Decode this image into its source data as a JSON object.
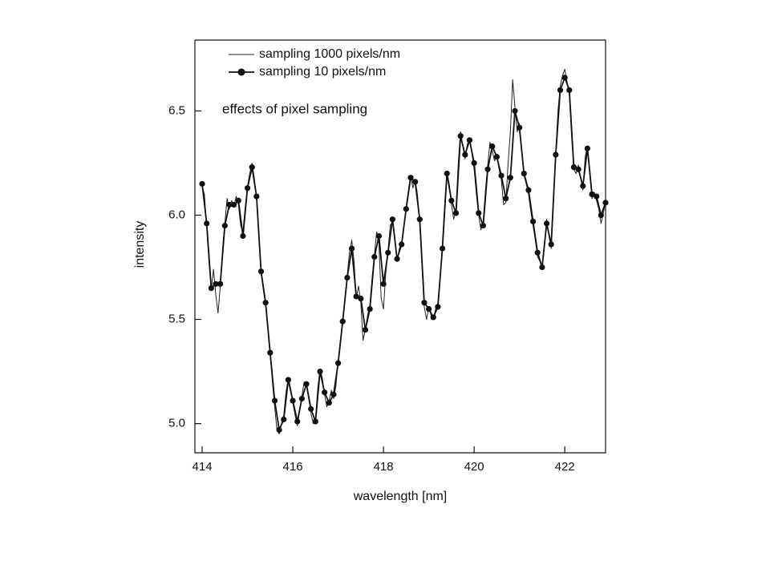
{
  "chart_data": {
    "type": "line",
    "annotation": "effects of pixel sampling",
    "x_label": "wavelength [nm]",
    "y_label": "intensity",
    "xlim": [
      413.84,
      422.9
    ],
    "ylim": [
      4.86,
      6.84
    ],
    "xticks": [
      414,
      416,
      418,
      420,
      422
    ],
    "yticks": [
      {
        "value": 5,
        "label": "5.0"
      },
      5.5,
      {
        "value": 6,
        "label": "6.0"
      },
      6.5
    ],
    "series": [
      {
        "name": "sampling 1000 pixels/nm",
        "color": "#222222",
        "markers": false,
        "x": [
          414.0,
          414.05,
          414.1,
          414.15,
          414.2,
          414.25,
          414.3,
          414.35,
          414.4,
          414.45,
          414.5,
          414.55,
          414.6,
          414.65,
          414.7,
          414.75,
          414.8,
          414.85,
          414.9,
          414.95,
          415.0,
          415.05,
          415.1,
          415.15,
          415.2,
          415.25,
          415.3,
          415.35,
          415.4,
          415.45,
          415.5,
          415.55,
          415.6,
          415.65,
          415.7,
          415.75,
          415.8,
          415.85,
          415.9,
          415.95,
          416.0,
          416.05,
          416.1,
          416.15,
          416.2,
          416.25,
          416.3,
          416.35,
          416.4,
          416.45,
          416.5,
          416.55,
          416.6,
          416.65,
          416.7,
          416.75,
          416.8,
          416.85,
          416.9,
          416.95,
          417.0,
          417.05,
          417.1,
          417.15,
          417.2,
          417.25,
          417.3,
          417.35,
          417.4,
          417.45,
          417.5,
          417.55,
          417.6,
          417.65,
          417.7,
          417.75,
          417.8,
          417.85,
          417.9,
          417.95,
          418.0,
          418.05,
          418.1,
          418.15,
          418.2,
          418.25,
          418.3,
          418.35,
          418.4,
          418.45,
          418.5,
          418.55,
          418.6,
          418.65,
          418.7,
          418.75,
          418.8,
          418.85,
          418.9,
          418.95,
          419.0,
          419.05,
          419.1,
          419.15,
          419.2,
          419.25,
          419.3,
          419.35,
          419.4,
          419.45,
          419.5,
          419.55,
          419.6,
          419.65,
          419.7,
          419.75,
          419.8,
          419.85,
          419.9,
          419.95,
          420.0,
          420.05,
          420.1,
          420.15,
          420.2,
          420.25,
          420.3,
          420.35,
          420.4,
          420.45,
          420.5,
          420.55,
          420.6,
          420.65,
          420.7,
          420.75,
          420.8,
          420.85,
          420.9,
          420.95,
          421.0,
          421.05,
          421.1,
          421.15,
          421.2,
          421.25,
          421.3,
          421.35,
          421.4,
          421.45,
          421.5,
          421.55,
          421.6,
          421.65,
          421.7,
          421.75,
          421.8,
          421.85,
          421.9,
          421.95,
          422.0,
          422.05,
          422.1,
          422.15,
          422.2,
          422.25,
          422.3,
          422.35,
          422.4,
          422.45,
          422.5,
          422.55,
          422.6,
          422.65,
          422.7,
          422.75,
          422.8,
          422.85,
          422.9
        ],
        "values": [
          6.14,
          6.1,
          5.94,
          5.78,
          5.64,
          5.74,
          5.62,
          5.53,
          5.66,
          5.84,
          5.96,
          6.08,
          6.03,
          6.07,
          6.04,
          6.09,
          6.05,
          5.95,
          5.92,
          6.04,
          6.14,
          6.2,
          6.25,
          6.18,
          6.08,
          5.9,
          5.72,
          5.64,
          5.57,
          5.45,
          5.33,
          5.2,
          5.08,
          4.97,
          4.95,
          5.0,
          5.04,
          5.15,
          5.22,
          5.17,
          5.1,
          5.04,
          4.99,
          5.06,
          5.13,
          5.2,
          5.18,
          5.12,
          5.05,
          5.0,
          5.02,
          5.17,
          5.26,
          5.22,
          5.14,
          5.08,
          5.11,
          5.16,
          5.12,
          5.18,
          5.3,
          5.4,
          5.48,
          5.6,
          5.71,
          5.82,
          5.88,
          5.78,
          5.6,
          5.66,
          5.58,
          5.4,
          5.45,
          5.52,
          5.57,
          5.7,
          5.81,
          5.92,
          5.86,
          5.6,
          5.55,
          5.72,
          5.83,
          5.95,
          5.97,
          5.88,
          5.78,
          5.84,
          5.87,
          5.94,
          6.04,
          6.12,
          6.19,
          6.13,
          6.17,
          6.1,
          5.96,
          5.75,
          5.56,
          5.5,
          5.56,
          5.52,
          5.5,
          5.55,
          5.58,
          5.7,
          5.86,
          6.05,
          6.21,
          6.15,
          6.05,
          5.98,
          6.03,
          6.25,
          6.4,
          6.33,
          6.27,
          6.34,
          6.36,
          6.3,
          6.22,
          6.1,
          6.0,
          5.93,
          5.97,
          6.12,
          6.24,
          6.35,
          6.31,
          6.26,
          6.29,
          6.22,
          6.17,
          6.05,
          6.06,
          6.25,
          6.4,
          6.65,
          6.52,
          6.4,
          6.44,
          6.3,
          6.19,
          6.15,
          6.1,
          6.02,
          5.95,
          5.88,
          5.8,
          5.78,
          5.74,
          5.85,
          5.98,
          5.9,
          5.84,
          6.05,
          6.3,
          6.5,
          6.62,
          6.67,
          6.7,
          6.64,
          6.58,
          6.38,
          6.22,
          6.2,
          6.24,
          6.18,
          6.12,
          6.28,
          6.33,
          6.2,
          6.08,
          6.11,
          6.07,
          6.03,
          5.96,
          6.01,
          6.06
        ]
      },
      {
        "name": "sampling 10 pixels/nm",
        "color": "#111111",
        "markers": true,
        "x": [
          414.0,
          414.1,
          414.2,
          414.3,
          414.4,
          414.5,
          414.6,
          414.7,
          414.8,
          414.9,
          415.0,
          415.1,
          415.2,
          415.3,
          415.4,
          415.5,
          415.6,
          415.7,
          415.8,
          415.9,
          416.0,
          416.1,
          416.2,
          416.3,
          416.4,
          416.5,
          416.6,
          416.7,
          416.8,
          416.9,
          417.0,
          417.1,
          417.2,
          417.3,
          417.4,
          417.5,
          417.6,
          417.7,
          417.8,
          417.9,
          418.0,
          418.1,
          418.2,
          418.3,
          418.4,
          418.5,
          418.6,
          418.7,
          418.8,
          418.9,
          419.0,
          419.1,
          419.2,
          419.3,
          419.4,
          419.5,
          419.6,
          419.7,
          419.8,
          419.9,
          420.0,
          420.1,
          420.2,
          420.3,
          420.4,
          420.5,
          420.6,
          420.7,
          420.8,
          420.9,
          421.0,
          421.1,
          421.2,
          421.3,
          421.4,
          421.5,
          421.6,
          421.7,
          421.8,
          421.9,
          422.0,
          422.1,
          422.2,
          422.3,
          422.4,
          422.5,
          422.6,
          422.7,
          422.8,
          422.9
        ],
        "values": [
          6.15,
          5.96,
          5.65,
          5.67,
          5.67,
          5.95,
          6.05,
          6.05,
          6.07,
          5.9,
          6.13,
          6.23,
          6.09,
          5.73,
          5.58,
          5.34,
          5.11,
          4.97,
          5.02,
          5.21,
          5.11,
          5.01,
          5.12,
          5.19,
          5.07,
          5.01,
          5.25,
          5.15,
          5.1,
          5.14,
          5.29,
          5.49,
          5.7,
          5.84,
          5.61,
          5.6,
          5.45,
          5.55,
          5.8,
          5.9,
          5.67,
          5.82,
          5.98,
          5.79,
          5.86,
          6.03,
          6.18,
          6.16,
          5.98,
          5.58,
          5.55,
          5.51,
          5.56,
          5.84,
          6.2,
          6.07,
          6.01,
          6.38,
          6.29,
          6.36,
          6.25,
          6.01,
          5.95,
          6.22,
          6.33,
          6.28,
          6.19,
          6.08,
          6.18,
          6.5,
          6.42,
          6.2,
          6.12,
          5.97,
          5.82,
          5.75,
          5.96,
          5.86,
          6.29,
          6.6,
          6.66,
          6.6,
          6.23,
          6.22,
          6.14,
          6.32,
          6.1,
          6.09,
          6.0,
          6.06
        ]
      }
    ]
  }
}
